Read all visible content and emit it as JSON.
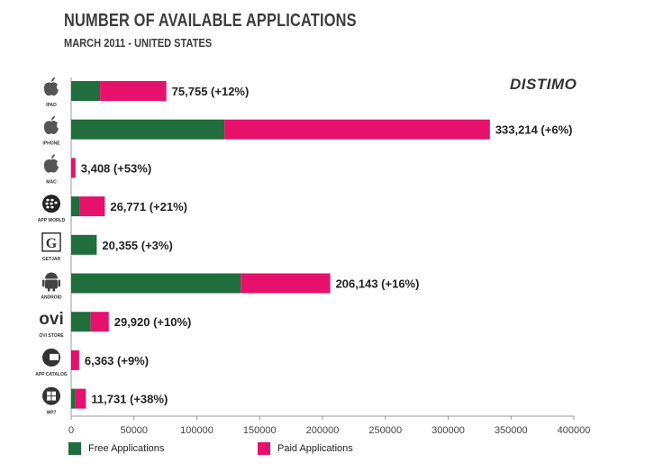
{
  "title": "NUMBER OF AVAILABLE APPLICATIONS",
  "subtitle": "MARCH 2011 - UNITED STATES",
  "brand": "DISTIMO",
  "colors": {
    "free": "#1f6e3c",
    "paid": "#e6116b"
  },
  "legend": {
    "free": "Free Applications",
    "paid": "Paid Applications"
  },
  "chart_data": {
    "type": "bar",
    "orientation": "horizontal",
    "stacked": true,
    "xlim": [
      0,
      400000
    ],
    "xticks": [
      "0",
      "50000",
      "100000",
      "150000",
      "200000",
      "250000",
      "300000",
      "350000",
      "400000"
    ],
    "grid": false,
    "legend_position": "bottom",
    "categories": [
      "IPAD",
      "IPHONE",
      "MAC",
      "APP WORLD",
      "GETJAR",
      "ANDROID",
      "OVI STORE",
      "APP CATALOG",
      "WP7"
    ],
    "series": [
      {
        "name": "Free Applications",
        "values": [
          23000,
          122000,
          300,
          6500,
          20355,
          135000,
          15500,
          700,
          3500
        ]
      },
      {
        "name": "Paid Applications",
        "values": [
          52755,
          211214,
          3108,
          20271,
          0,
          71143,
          14420,
          5663,
          8231
        ]
      }
    ],
    "totals": [
      75755,
      333214,
      3408,
      26771,
      20355,
      206143,
      29920,
      6363,
      11731
    ],
    "labels": [
      "75,755 (+12%)",
      "333,214 (+6%)",
      "3,408 (+53%)",
      "26,771 (+21%)",
      "20,355 (+3%)",
      "206,143 (+16%)",
      "29,920 (+10%)",
      "6,363 (+9%)",
      "11,731 (+38%)"
    ],
    "icons": [
      "apple-icon",
      "apple-icon",
      "apple-icon",
      "blackberry-icon",
      "getjar-icon",
      "android-icon",
      "ovi-icon",
      "palm-icon",
      "windows-icon"
    ]
  }
}
